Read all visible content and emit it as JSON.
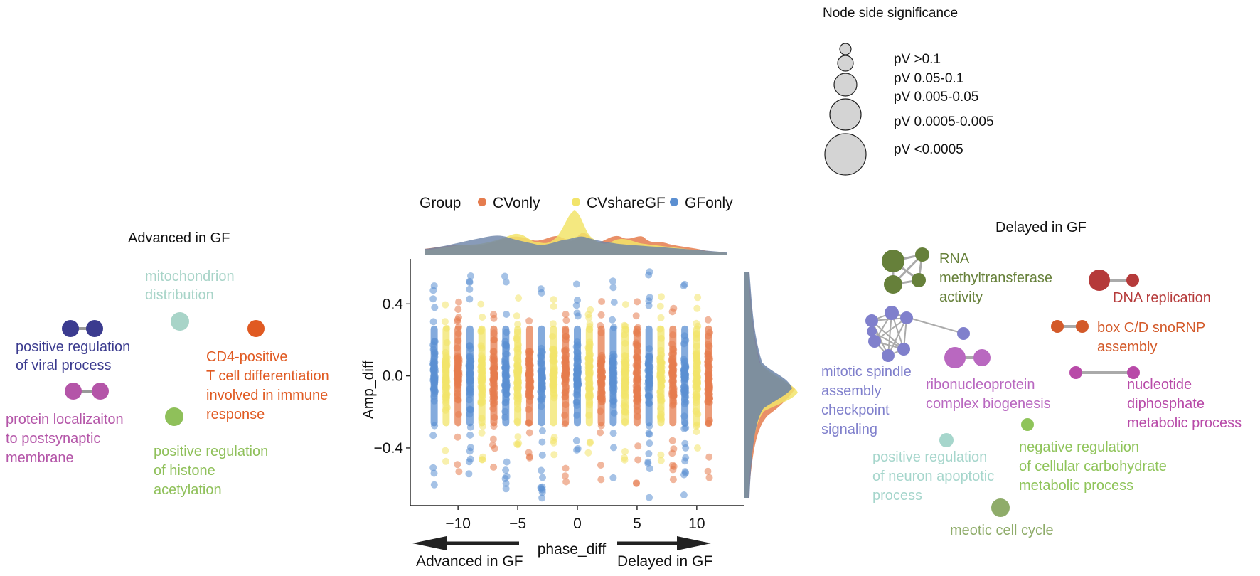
{
  "chart_data": {
    "type": "scatter",
    "xlabel": "phase_diff",
    "ylabel": "Amp_diff",
    "x_ticks": [
      -10,
      -5,
      0,
      5,
      10
    ],
    "y_ticks": [
      0.4,
      0.0,
      -0.4
    ],
    "x_tick_labels": [
      "−10",
      "−5",
      "0",
      "5",
      "10"
    ],
    "y_tick_labels": [
      "0.4",
      "0.0",
      "−0.4"
    ],
    "xlim": [
      -14,
      14
    ],
    "ylim": [
      -0.72,
      0.65
    ],
    "legend_title": "Group",
    "series": [
      {
        "name": "CVonly",
        "color": "#e57c4e",
        "offset": 2.0,
        "min": -0.62,
        "max": 0.42
      },
      {
        "name": "CVshareGF",
        "color": "#f2e46a",
        "offset": 1.0,
        "min": -0.48,
        "max": 0.45
      },
      {
        "name": "GFonly",
        "color": "#5b8fd1",
        "offset": 0.0,
        "min": -0.68,
        "max": 0.58
      }
    ],
    "x_positions": [
      -12,
      -9,
      -6,
      -3,
      0,
      3,
      6,
      9
    ],
    "arrow_left_label": "Advanced in GF",
    "arrow_right_label": "Delayed in GF"
  },
  "legend_size": {
    "title": "Node side significance",
    "entries": [
      "pV >0.1",
      "pV 0.05-0.1",
      "pV 0.005-0.05",
      "pV 0.0005-0.005",
      "pV <0.0005"
    ]
  },
  "left_panel": {
    "title": "Advanced in GF",
    "labels": {
      "mito": [
        "mitochondrion",
        "distribution"
      ],
      "viral": [
        "positive regulation",
        "of viral process"
      ],
      "cd4": [
        "CD4-positive",
        "T cell differentiation",
        "involved in immune",
        "response"
      ],
      "protein": [
        "protein localizaiton",
        "to postsynaptic",
        "membrane"
      ],
      "histone": [
        "positive regulation",
        "of histone",
        "acetylation"
      ]
    },
    "colors": {
      "mito": "#a8d4c8",
      "viral": "#3b3b8f",
      "cd4": "#e05a22",
      "protein": "#b455a8",
      "histone": "#8fc05a"
    }
  },
  "right_panel": {
    "title": "Delayed in GF",
    "labels": {
      "rna": [
        "RNA",
        "methyltransferase",
        "activity"
      ],
      "dna": [
        "DNA replication"
      ],
      "boxcd": [
        "box C/D snoRNP",
        "assembly"
      ],
      "mitotic": [
        "mitotic spindle",
        "assembly",
        "checkpoint",
        "signaling"
      ],
      "ribo": [
        "ribonucleoprotein",
        "complex biogenesis"
      ],
      "nucleotide": [
        "nucleotide",
        "diphosphate",
        "metabolic process"
      ],
      "neuron": [
        "positive regulation",
        "of neuron apoptotic",
        "process"
      ],
      "carb": [
        "negative regulation",
        "of cellular carbohydrate",
        "metabolic process"
      ],
      "meiotic": [
        "meotic cell cycle"
      ]
    },
    "colors": {
      "rna": "#66803a",
      "dna": "#b53a3a",
      "boxcd": "#d35a2a",
      "mitotic": "#8080cc",
      "ribo": "#b968c0",
      "nucleotide": "#b84aa8",
      "neuron": "#a6d6cc",
      "carb": "#8fc45a",
      "meiotic": "#8fac6a"
    }
  }
}
